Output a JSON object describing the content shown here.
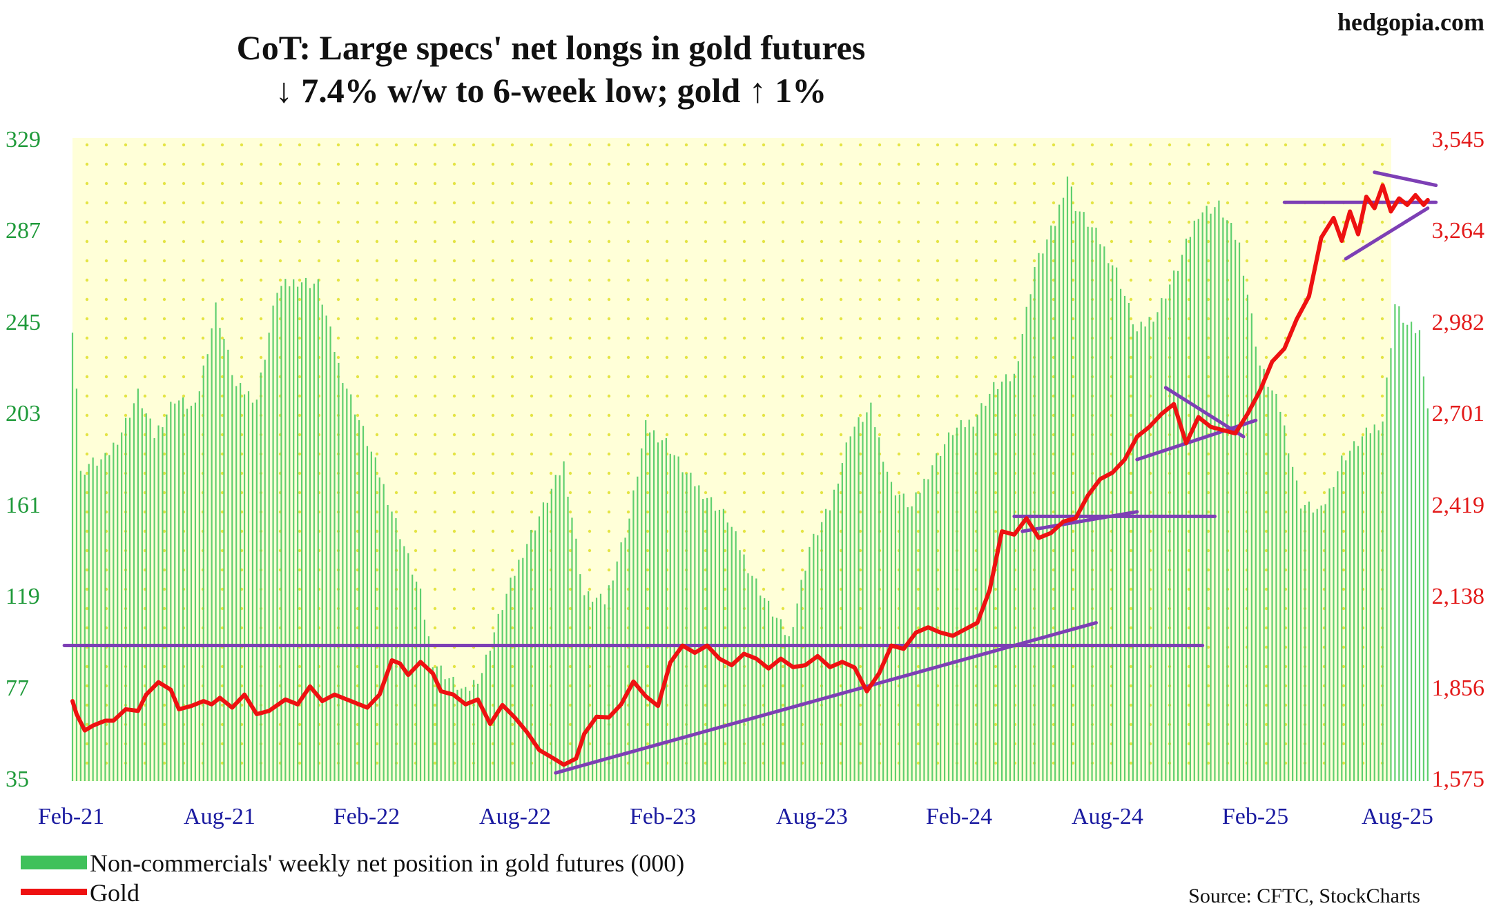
{
  "watermark": "hedgopia.com",
  "source": "Source: CFTC, StockCharts",
  "colors": {
    "bars": "#5fcf6f",
    "gold_line": "#ee1111",
    "trend_lines": "#7d3fb5",
    "plot_bg": "#ffffd6",
    "plot_dots": "#e7e74a"
  },
  "chart_data": {
    "type": "bar+line",
    "title_lines": [
      "CoT: Large specs' net longs in gold futures",
      "↓ 7.4% w/w to 6-week low; gold ↑ 1%"
    ],
    "x_start": "2021-02",
    "x_end": "2025-08",
    "x_ticks": [
      "Feb-21",
      "Aug-21",
      "Feb-22",
      "Aug-22",
      "Feb-23",
      "Aug-23",
      "Feb-24",
      "Aug-24",
      "Feb-25",
      "Aug-25"
    ],
    "y_left": {
      "ylim": [
        35,
        329
      ],
      "ticks": [
        "329",
        "287",
        "245",
        "203",
        "161",
        "119",
        "77",
        "35"
      ]
    },
    "y_right": {
      "ylim": [
        1575,
        3545
      ],
      "ticks": [
        "3,545",
        "3,264",
        "2,982",
        "2,701",
        "2,419",
        "2,138",
        "1,856",
        "1,575"
      ]
    },
    "legend": [
      "Non-commercials' weekly net position in gold futures (000)",
      "Gold"
    ],
    "bar_anchors": [
      [
        0,
        243
      ],
      [
        1,
        215
      ],
      [
        2,
        175
      ],
      [
        4,
        180
      ],
      [
        8,
        182
      ],
      [
        12,
        195
      ],
      [
        16,
        212
      ],
      [
        20,
        193
      ],
      [
        25,
        210
      ],
      [
        30,
        205
      ],
      [
        35,
        252
      ],
      [
        40,
        215
      ],
      [
        45,
        210
      ],
      [
        50,
        260
      ],
      [
        55,
        264
      ],
      [
        60,
        262
      ],
      [
        65,
        225
      ],
      [
        70,
        200
      ],
      [
        75,
        175
      ],
      [
        80,
        148
      ],
      [
        85,
        120
      ],
      [
        88,
        90
      ],
      [
        92,
        82
      ],
      [
        96,
        75
      ],
      [
        100,
        85
      ],
      [
        105,
        115
      ],
      [
        110,
        140
      ],
      [
        115,
        160
      ],
      [
        120,
        180
      ],
      [
        125,
        120
      ],
      [
        130,
        117
      ],
      [
        136,
        155
      ],
      [
        140,
        197
      ],
      [
        145,
        190
      ],
      [
        150,
        175
      ],
      [
        155,
        165
      ],
      [
        160,
        155
      ],
      [
        165,
        133
      ],
      [
        170,
        115
      ],
      [
        175,
        100
      ],
      [
        180,
        142
      ],
      [
        185,
        160
      ],
      [
        190,
        195
      ],
      [
        195,
        205
      ],
      [
        200,
        170
      ],
      [
        205,
        160
      ],
      [
        210,
        180
      ],
      [
        215,
        195
      ],
      [
        220,
        200
      ],
      [
        225,
        215
      ],
      [
        230,
        220
      ],
      [
        235,
        270
      ],
      [
        240,
        290
      ],
      [
        243,
        312
      ],
      [
        245,
        298
      ],
      [
        250,
        285
      ],
      [
        255,
        268
      ],
      [
        260,
        240
      ],
      [
        265,
        250
      ],
      [
        270,
        270
      ],
      [
        275,
        295
      ],
      [
        280,
        298
      ],
      [
        285,
        280
      ],
      [
        290,
        225
      ],
      [
        295,
        205
      ],
      [
        300,
        162
      ],
      [
        305,
        158
      ],
      [
        310,
        182
      ],
      [
        315,
        192
      ],
      [
        320,
        200
      ],
      [
        323,
        253
      ],
      [
        326,
        243
      ],
      [
        329,
        240
      ],
      [
        331,
        206
      ]
    ],
    "gold_anchors": [
      [
        0,
        1820
      ],
      [
        1,
        1780
      ],
      [
        3,
        1730
      ],
      [
        5,
        1745
      ],
      [
        8,
        1760
      ],
      [
        10,
        1760
      ],
      [
        13,
        1795
      ],
      [
        16,
        1790
      ],
      [
        18,
        1840
      ],
      [
        21,
        1878
      ],
      [
        24,
        1855
      ],
      [
        26,
        1795
      ],
      [
        29,
        1805
      ],
      [
        32,
        1820
      ],
      [
        34,
        1810
      ],
      [
        36,
        1830
      ],
      [
        39,
        1800
      ],
      [
        42,
        1840
      ],
      [
        45,
        1780
      ],
      [
        48,
        1790
      ],
      [
        52,
        1825
      ],
      [
        55,
        1810
      ],
      [
        58,
        1865
      ],
      [
        61,
        1820
      ],
      [
        64,
        1840
      ],
      [
        68,
        1820
      ],
      [
        72,
        1800
      ],
      [
        75,
        1840
      ],
      [
        78,
        1945
      ],
      [
        80,
        1935
      ],
      [
        82,
        1900
      ],
      [
        85,
        1940
      ],
      [
        88,
        1905
      ],
      [
        90,
        1850
      ],
      [
        93,
        1840
      ],
      [
        96,
        1810
      ],
      [
        99,
        1825
      ],
      [
        102,
        1750
      ],
      [
        105,
        1808
      ],
      [
        108,
        1770
      ],
      [
        111,
        1725
      ],
      [
        114,
        1670
      ],
      [
        117,
        1648
      ],
      [
        120,
        1625
      ],
      [
        123,
        1644
      ],
      [
        125,
        1720
      ],
      [
        128,
        1772
      ],
      [
        131,
        1770
      ],
      [
        134,
        1810
      ],
      [
        137,
        1880
      ],
      [
        140,
        1835
      ],
      [
        143,
        1805
      ],
      [
        146,
        1938
      ],
      [
        149,
        1990
      ],
      [
        152,
        1968
      ],
      [
        155,
        1990
      ],
      [
        158,
        1950
      ],
      [
        161,
        1930
      ],
      [
        164,
        1965
      ],
      [
        167,
        1950
      ],
      [
        170,
        1920
      ],
      [
        173,
        1950
      ],
      [
        176,
        1924
      ],
      [
        179,
        1930
      ],
      [
        182,
        1958
      ],
      [
        185,
        1924
      ],
      [
        188,
        1940
      ],
      [
        191,
        1923
      ],
      [
        194,
        1850
      ],
      [
        197,
        1905
      ],
      [
        200,
        1990
      ],
      [
        203,
        1980
      ],
      [
        206,
        2030
      ],
      [
        209,
        2046
      ],
      [
        212,
        2030
      ],
      [
        215,
        2020
      ],
      [
        218,
        2040
      ],
      [
        221,
        2060
      ],
      [
        224,
        2160
      ],
      [
        227,
        2340
      ],
      [
        230,
        2330
      ],
      [
        233,
        2380
      ],
      [
        236,
        2320
      ],
      [
        239,
        2335
      ],
      [
        242,
        2370
      ],
      [
        245,
        2380
      ],
      [
        248,
        2450
      ],
      [
        251,
        2500
      ],
      [
        254,
        2520
      ],
      [
        257,
        2560
      ],
      [
        260,
        2630
      ],
      [
        263,
        2660
      ],
      [
        266,
        2700
      ],
      [
        269,
        2730
      ],
      [
        272,
        2610
      ],
      [
        275,
        2690
      ],
      [
        278,
        2660
      ],
      [
        281,
        2650
      ],
      [
        284,
        2640
      ],
      [
        287,
        2700
      ],
      [
        290,
        2770
      ],
      [
        293,
        2860
      ],
      [
        296,
        2900
      ],
      [
        299,
        2990
      ],
      [
        302,
        3060
      ],
      [
        305,
        3240
      ],
      [
        308,
        3300
      ],
      [
        310,
        3230
      ],
      [
        312,
        3320
      ],
      [
        314,
        3250
      ],
      [
        316,
        3365
      ],
      [
        318,
        3330
      ],
      [
        320,
        3400
      ],
      [
        322,
        3320
      ],
      [
        324,
        3360
      ],
      [
        326,
        3340
      ],
      [
        328,
        3370
      ],
      [
        330,
        3340
      ],
      [
        331,
        3355
      ]
    ],
    "trend_lines": [
      {
        "axis": "left",
        "from": [
          -2,
          97
        ],
        "to": [
          276,
          97
        ]
      },
      {
        "axis": "left",
        "from": [
          230,
          156
        ],
        "to": [
          279,
          156
        ]
      },
      {
        "axis": "right",
        "from": [
          118,
          1600
        ],
        "to": [
          250,
          2060
        ]
      },
      {
        "axis": "right",
        "from": [
          232,
          2340
        ],
        "to": [
          260,
          2400
        ]
      },
      {
        "axis": "right",
        "from": [
          260,
          2560
        ],
        "to": [
          289,
          2680
        ]
      },
      {
        "axis": "right",
        "from": [
          267,
          2780
        ],
        "to": [
          286,
          2630
        ]
      },
      {
        "axis": "right",
        "from": [
          311,
          3175
        ],
        "to": [
          331,
          3330
        ]
      },
      {
        "axis": "right",
        "from": [
          318,
          3440
        ],
        "to": [
          333,
          3400
        ]
      },
      {
        "axis": "right",
        "from": [
          296,
          3348
        ],
        "to": [
          333,
          3348
        ]
      }
    ]
  }
}
